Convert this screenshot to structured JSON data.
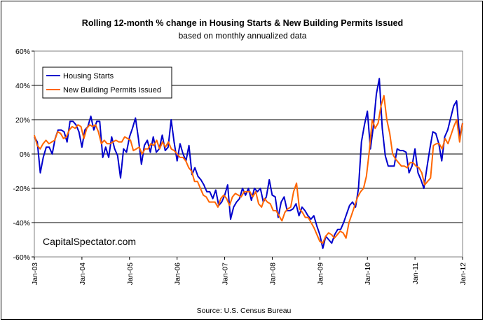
{
  "chart_data": {
    "type": "line",
    "title": "Rolling 12-month %  change in Housing Starts & New Building Permits Issued",
    "subtitle": "based on monthly annualized data",
    "source": "Source: U.S. Census Bureau",
    "watermark": "CapitalSpectator.com",
    "ylim": [
      -60,
      60
    ],
    "yticks": [
      60,
      40,
      20,
      0,
      -20,
      -40,
      -60
    ],
    "ytick_labels": [
      "60%",
      "40%",
      "20%",
      "0%",
      "-20%",
      "-40%",
      "-60%"
    ],
    "xlim": [
      2003.0,
      2012.0
    ],
    "xticks": [
      2003,
      2004,
      2005,
      2006,
      2007,
      2008,
      2009,
      2010,
      2011,
      2012
    ],
    "xtick_labels": [
      "Jan-03",
      "Jan-04",
      "Jan-05",
      "Jan-06",
      "Jan-07",
      "Jan-08",
      "Jan-09",
      "Jan-10",
      "Jan-11",
      "Jan-12"
    ],
    "grid": "horizontal",
    "legend_position": "top-left",
    "series": [
      {
        "name": "Housing Starts",
        "color": "#0000cc",
        "values": [
          10,
          7,
          -11,
          -2,
          4,
          4,
          0,
          9,
          14,
          14,
          13,
          7,
          19,
          19,
          17,
          13,
          4,
          14,
          16,
          22,
          14,
          19,
          19,
          -2,
          4,
          -2,
          10,
          3,
          -1,
          -14,
          3,
          1,
          10,
          15,
          21,
          9,
          -6,
          5,
          8,
          1,
          10,
          1,
          3,
          11,
          2,
          4,
          20,
          7,
          -4,
          6,
          0,
          -4,
          5,
          -12,
          -8,
          -13,
          -15,
          -18,
          -22,
          -22,
          -26,
          -21,
          -30,
          -28,
          -24,
          -18,
          -38,
          -31,
          -28,
          -26,
          -20,
          -24,
          -20,
          -27,
          -20,
          -22,
          -20,
          -28,
          -25,
          -15,
          -24,
          -25,
          -37,
          -28,
          -25,
          -33,
          -33,
          -32,
          -29,
          -36,
          -31,
          -33,
          -36,
          -38,
          -36,
          -42,
          -47,
          -55,
          -48,
          -50,
          -52,
          -47,
          -44,
          -44,
          -40,
          -35,
          -30,
          -28,
          -31,
          -20,
          7,
          17,
          25,
          3,
          16,
          35,
          44,
          15,
          -1,
          -7,
          -7,
          -7,
          3,
          2,
          2,
          1,
          -11,
          -7,
          3,
          -11,
          -15,
          -20,
          -8,
          3,
          13,
          12,
          6,
          -4,
          10,
          14,
          21,
          28,
          31,
          10,
          18
        ]
      },
      {
        "name": "New Building Permits Issued",
        "color": "#ff6600",
        "values": [
          11,
          5,
          3,
          6,
          8,
          6,
          7,
          8,
          13,
          12,
          9,
          10,
          14,
          16,
          15,
          17,
          16,
          9,
          15,
          17,
          16,
          17,
          13,
          6,
          8,
          6,
          6,
          7,
          8,
          7,
          7,
          10,
          9,
          8,
          2,
          3,
          4,
          0,
          3,
          3,
          6,
          5,
          8,
          3,
          7,
          4,
          7,
          3,
          2,
          0,
          -2,
          -2,
          -4,
          -8,
          -10,
          -16,
          -16,
          -20,
          -24,
          -25,
          -28,
          -28,
          -28,
          -31,
          -26,
          -24,
          -26,
          -30,
          -25,
          -23,
          -24,
          -25,
          -22,
          -22,
          -22,
          -25,
          -22,
          -29,
          -31,
          -26,
          -28,
          -29,
          -33,
          -33,
          -36,
          -39,
          -34,
          -32,
          -31,
          -22,
          -17,
          -32,
          -34,
          -37,
          -37,
          -40,
          -43,
          -47,
          -51,
          -52,
          -48,
          -46,
          -47,
          -49,
          -47,
          -45,
          -46,
          -49,
          -40,
          -35,
          -30,
          -25,
          -22,
          -20,
          -13,
          2,
          20,
          15,
          18,
          28,
          34,
          20,
          12,
          0,
          -3,
          -5,
          -7,
          -7,
          -8,
          -5,
          -5,
          -7,
          -8,
          -11,
          -18,
          -16,
          -14,
          5,
          6,
          6,
          3,
          9,
          6,
          11,
          16,
          20,
          7,
          18
        ]
      }
    ]
  }
}
